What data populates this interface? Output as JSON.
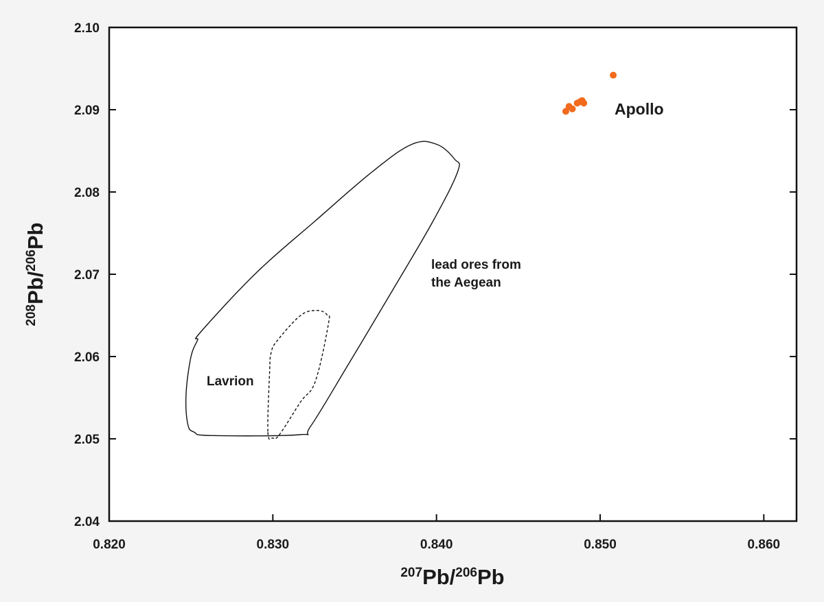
{
  "chart_data": {
    "type": "scatter",
    "x_label": {
      "sup1": "207",
      "main1": "Pb/",
      "sup2": "206",
      "main2": "Pb"
    },
    "y_label": {
      "sup1": "208",
      "main1": "Pb/",
      "sup2": "206",
      "main2": "Pb"
    },
    "xlim": [
      0.82,
      0.862
    ],
    "ylim": [
      2.04,
      2.1
    ],
    "x_ticks": [
      "0.820",
      "0.830",
      "0.840",
      "0.850",
      "0.860"
    ],
    "y_ticks": [
      "2.04",
      "2.05",
      "2.06",
      "2.07",
      "2.08",
      "2.09",
      "2.10"
    ],
    "grid": false,
    "series": [
      {
        "name": "Apollo",
        "color": "#f26b1d",
        "points": [
          {
            "x": 0.8479,
            "y": 2.0898
          },
          {
            "x": 0.8481,
            "y": 2.0904
          },
          {
            "x": 0.8483,
            "y": 2.0901
          },
          {
            "x": 0.8486,
            "y": 2.0908
          },
          {
            "x": 0.8488,
            "y": 2.091
          },
          {
            "x": 0.8489,
            "y": 2.0911
          },
          {
            "x": 0.849,
            "y": 2.0908
          },
          {
            "x": 0.8508,
            "y": 2.0942
          }
        ]
      }
    ],
    "regions": [
      {
        "name": "lead ores from the Aegean",
        "style": "solid",
        "label_lines": [
          "lead ores from",
          "the Aegean"
        ],
        "path": [
          [
            0.8262,
            2.0504
          ],
          [
            0.8316,
            2.0505
          ],
          [
            0.8323,
            2.0515
          ],
          [
            0.8346,
            2.059
          ],
          [
            0.8373,
            2.068
          ],
          [
            0.8398,
            2.0765
          ],
          [
            0.8413,
            2.0825
          ],
          [
            0.8411,
            2.084
          ],
          [
            0.84,
            2.0858
          ],
          [
            0.8385,
            2.0858
          ],
          [
            0.8361,
            2.0825
          ],
          [
            0.8326,
            2.0765
          ],
          [
            0.829,
            2.0702
          ],
          [
            0.8256,
            2.063
          ],
          [
            0.8254,
            2.062
          ],
          [
            0.825,
            2.06
          ],
          [
            0.8247,
            2.0555
          ],
          [
            0.8248,
            2.0518
          ],
          [
            0.8252,
            2.0508
          ]
        ]
      },
      {
        "name": "Lavrion",
        "style": "dashed",
        "label_lines": [
          "Lavrion"
        ],
        "path": [
          [
            0.8297,
            2.0508
          ],
          [
            0.83,
            2.0501
          ],
          [
            0.8304,
            2.0505
          ],
          [
            0.8317,
            2.0545
          ],
          [
            0.8326,
            2.057
          ],
          [
            0.8334,
            2.064
          ],
          [
            0.8333,
            2.0651
          ],
          [
            0.8327,
            2.0656
          ],
          [
            0.8317,
            2.065
          ],
          [
            0.8303,
            2.062
          ],
          [
            0.8299,
            2.0605
          ],
          [
            0.8298,
            2.058
          ]
        ]
      }
    ],
    "annotations": [
      {
        "id": "apollo",
        "text": "Apollo"
      },
      {
        "id": "aegean-1",
        "text": "lead ores from"
      },
      {
        "id": "aegean-2",
        "text": "the Aegean"
      },
      {
        "id": "lavrion",
        "text": "Lavrion"
      }
    ]
  }
}
